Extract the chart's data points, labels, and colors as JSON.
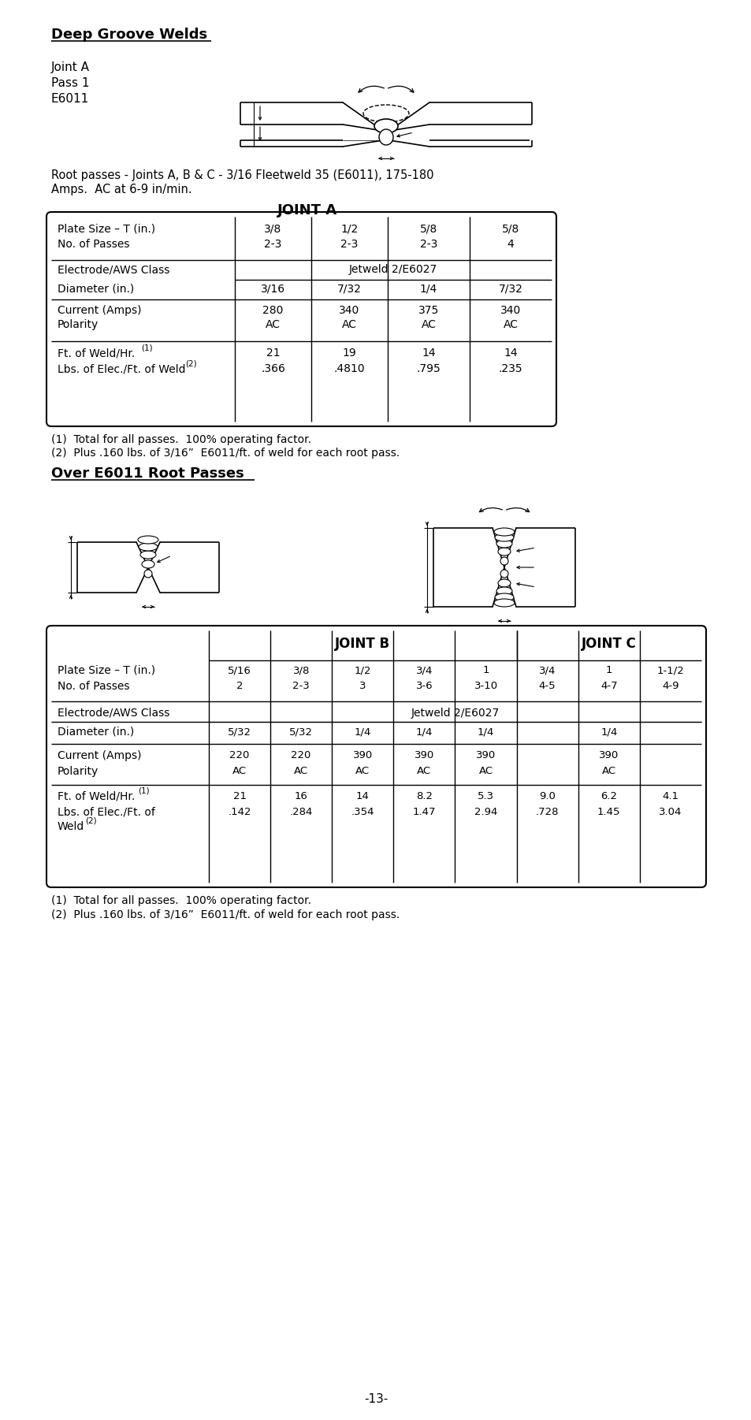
{
  "bg_color": "#ffffff",
  "title_deep_groove": "Deep Groove Welds",
  "root_passes_text1": "Root passes - Joints A, B & C - 3/16 Fleetweld 35 (E6011), 175-180",
  "root_passes_text2": "Amps.  AC at 6-9 in/min.",
  "joint_a_title": "JOINT A",
  "joint_a_table": {
    "col_headers": [
      "3/8",
      "1/2",
      "5/8",
      "5/8"
    ],
    "col_headers2": [
      "2-3",
      "2-3",
      "2-3",
      "4"
    ],
    "electrode_class": "Jetweld 2/E6027",
    "diameter": [
      "3/16",
      "7/32",
      "1/4",
      "7/32"
    ],
    "current": [
      "280",
      "340",
      "375",
      "340"
    ],
    "polarity": [
      "AC",
      "AC",
      "AC",
      "AC"
    ],
    "ft_weld": [
      "21",
      "19",
      "14",
      "14"
    ],
    "lbs_elec": [
      ".366",
      ".4810",
      ".795",
      ".235"
    ]
  },
  "note1": "(1)  Total for all passes.  100% operating factor.",
  "note2": "(2)  Plus .160 lbs. of 3/16”  E6011/ft. of weld for each root pass.",
  "over_e6011_title": "Over E6011 Root Passes",
  "joint_bc_title_b": "JOINT B",
  "joint_bc_title_c": "JOINT C",
  "joint_bc_table": {
    "plate_size_b": [
      "5/16",
      "3/8",
      "1/2",
      "3/4",
      "1"
    ],
    "no_passes_b": [
      "2",
      "2-3",
      "3",
      "3-6",
      "3-10"
    ],
    "plate_size_c": [
      "3/4",
      "1",
      "1-1/2"
    ],
    "no_passes_c": [
      "4-5",
      "4-7",
      "4-9"
    ],
    "electrode_class": "Jetweld 2/E6027",
    "diameter_b": [
      "5/32",
      "5/32",
      "1/4",
      "1/4",
      "1/4"
    ],
    "diameter_c": [
      "1/4"
    ],
    "current_b": [
      "220",
      "220",
      "390",
      "390",
      "390"
    ],
    "polarity_b": [
      "AC",
      "AC",
      "AC",
      "AC",
      "AC"
    ],
    "current_c": [
      "390"
    ],
    "polarity_c": [
      "AC"
    ],
    "ft_weld_b": [
      "21",
      "16",
      "14",
      "8.2",
      "5.3"
    ],
    "lbs_elec_b": [
      ".142",
      ".284",
      ".354",
      "1.47",
      "2.94"
    ],
    "ft_weld_c": [
      "9.0",
      "6.2",
      "4.1"
    ],
    "lbs_elec_c": [
      ".728",
      "1.45",
      "3.04"
    ]
  },
  "note1_bc": "(1)  Total for all passes.  100% operating factor.",
  "note2_bc": "(2)  Plus .160 lbs. of 3/16”  E6011/ft. of weld for each root pass.",
  "page_number": "-13-"
}
